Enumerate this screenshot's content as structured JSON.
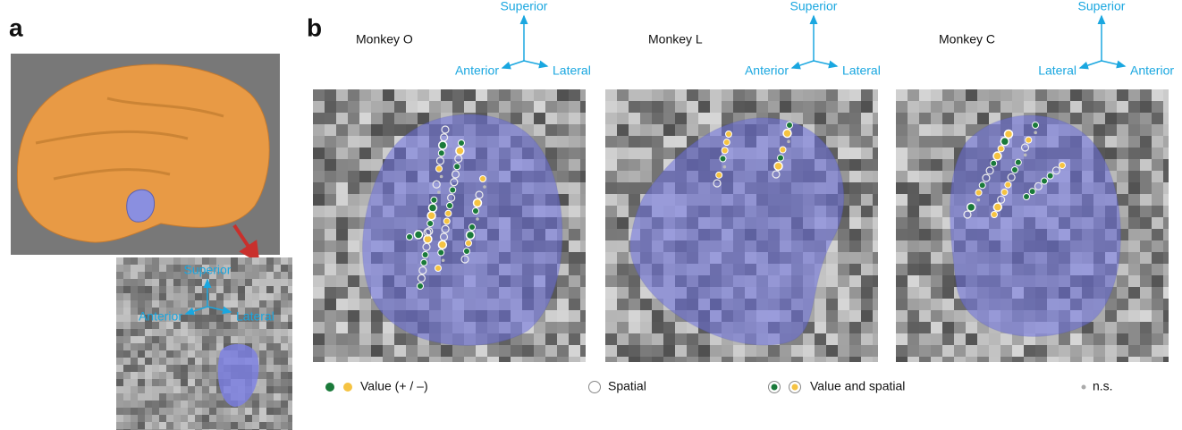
{
  "panel_a": {
    "label": "a",
    "axes": {
      "up": "Superior",
      "left": "Anterior",
      "right": "Lateral"
    }
  },
  "panel_b": {
    "label": "b",
    "monkeys": [
      {
        "name": "Monkey O",
        "up": "Superior",
        "left": "Anterior",
        "right": "Lateral"
      },
      {
        "name": "Monkey L",
        "up": "Superior",
        "left": "Anterior",
        "right": "Lateral"
      },
      {
        "name": "Monkey C",
        "up": "Superior",
        "left": "Lateral",
        "right": "Anterior"
      }
    ],
    "legend": [
      "Value (+ / –)",
      "Spatial",
      "Value and spatial",
      "n.s."
    ]
  }
}
